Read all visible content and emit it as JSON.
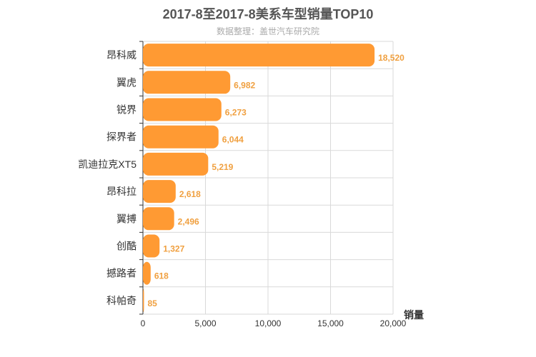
{
  "chart_data": {
    "type": "bar",
    "orientation": "horizontal",
    "title": "2017-8至2017-8美系车型销量TOP10",
    "subtitle": "数据整理：盖世汽车研究院",
    "xlabel": "销量",
    "ylabel": "",
    "xlim": [
      0,
      20000
    ],
    "xticks": [
      "0",
      "5,000",
      "10,000",
      "15,000",
      "20,000"
    ],
    "categories": [
      "昂科威",
      "翼虎",
      "锐界",
      "探界者",
      "凯迪拉克XT5",
      "昂科拉",
      "翼搏",
      "创酷",
      "撼路者",
      "科帕奇"
    ],
    "values": [
      18520,
      6982,
      6273,
      6044,
      5219,
      2618,
      2496,
      1327,
      618,
      85
    ],
    "value_labels": [
      "18,520",
      "6,982",
      "6,273",
      "6,044",
      "5,219",
      "2,618",
      "2,496",
      "1,327",
      "618",
      "85"
    ],
    "grid": true,
    "colors": {
      "bar": "#ff9a33",
      "value_label": "#f0a040",
      "grid": "#d9d9d9",
      "axis": "#333333"
    }
  }
}
